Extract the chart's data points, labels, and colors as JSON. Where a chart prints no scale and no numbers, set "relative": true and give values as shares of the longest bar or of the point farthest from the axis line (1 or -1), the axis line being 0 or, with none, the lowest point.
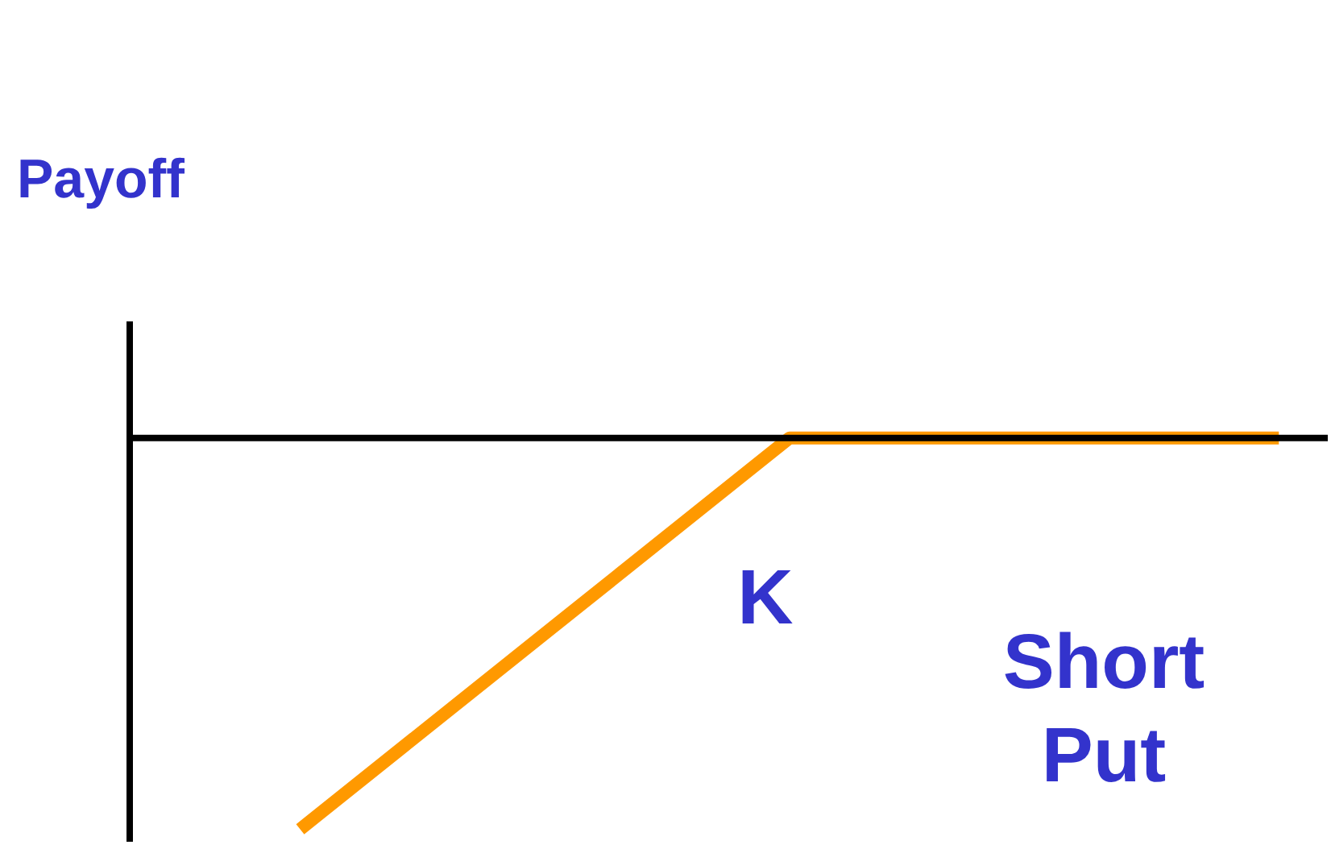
{
  "chart_data": {
    "type": "line",
    "relative": true,
    "ylabel": "Payoff",
    "categories": [
      null,
      null,
      null
    ],
    "values": [
      -1,
      0,
      0
    ],
    "color": "#ff9900",
    "annotations": [
      "K",
      "Short Put"
    ]
  }
}
